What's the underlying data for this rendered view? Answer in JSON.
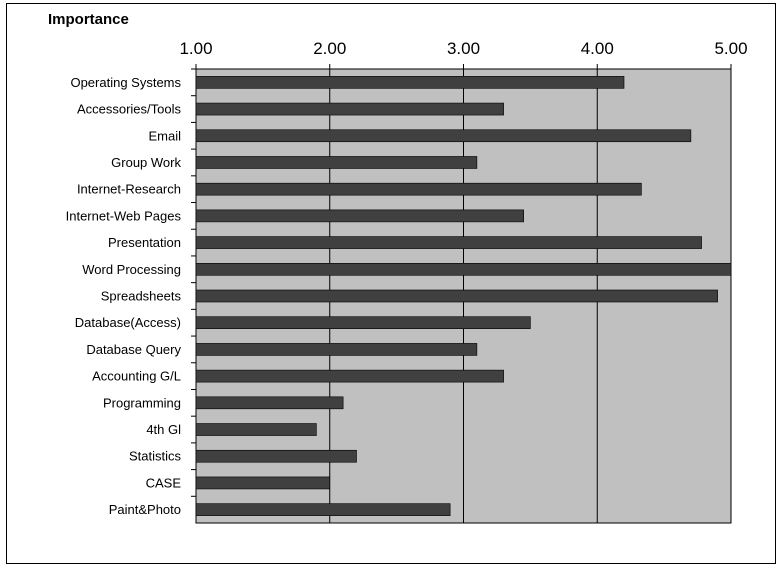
{
  "chart_data": {
    "type": "bar",
    "orientation": "horizontal",
    "title": "Importance",
    "xlabel": "",
    "ylabel": "",
    "xlim": [
      1.0,
      5.0
    ],
    "x_ticks": [
      "1.00",
      "2.00",
      "3.00",
      "4.00",
      "5.00"
    ],
    "x_axis_position": "top",
    "grid": "vertical",
    "categories": [
      "Operating Systems",
      "Accessories/Tools",
      "Email",
      "Group Work",
      "Internet-Research",
      "Internet-Web Pages",
      "Presentation",
      "Word Processing",
      "Spreadsheets",
      "Database(Access)",
      "Database Query",
      "Accounting G/L",
      "Programming",
      "4th Gl",
      "Statistics",
      "CASE",
      "Paint&Photo"
    ],
    "values": [
      4.2,
      3.3,
      4.7,
      3.1,
      4.33,
      3.45,
      4.78,
      5.0,
      4.9,
      3.5,
      3.1,
      3.3,
      2.1,
      1.9,
      2.2,
      2.0,
      2.9
    ],
    "colors": {
      "bar": "#404040",
      "plot_background": "#c0c0c0",
      "gridline": "#000000"
    }
  }
}
